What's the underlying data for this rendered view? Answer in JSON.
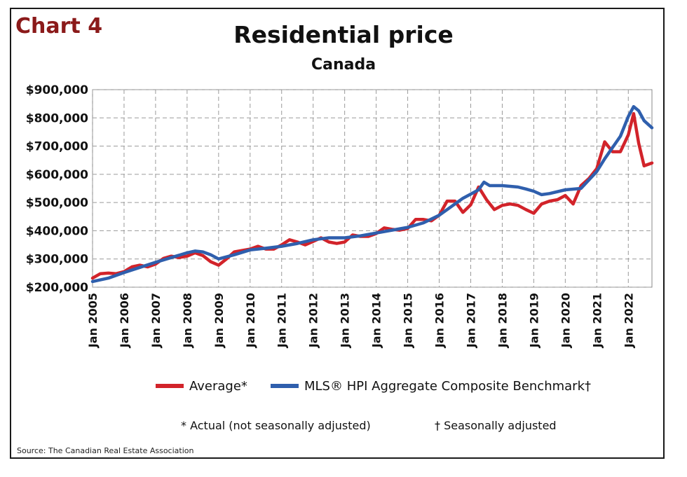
{
  "chart_label": "Chart 4",
  "source": "Source: The Canadian Real Estate Association",
  "colors": {
    "average": "#d2232a",
    "hpi": "#2f5fad",
    "label": "#8b1a1a"
  },
  "chart_data": {
    "type": "line",
    "title": "Residential price",
    "subtitle": "Canada",
    "xlabel": "",
    "ylabel": "",
    "xlim": [
      2005.0,
      2022.75
    ],
    "ylim": [
      200000,
      900000
    ],
    "y_ticks": [
      "$200,000",
      "$300,000",
      "$400,000",
      "$500,000",
      "$600,000",
      "$700,000",
      "$800,000",
      "$900,000"
    ],
    "y_tick_values": [
      200000,
      300000,
      400000,
      500000,
      600000,
      700000,
      800000,
      900000
    ],
    "x_ticks": [
      "Jan 2005",
      "Jan 2006",
      "Jan 2007",
      "Jan 2008",
      "Jan 2009",
      "Jan 2010",
      "Jan 2011",
      "Jan 2012",
      "Jan 2013",
      "Jan 2014",
      "Jan 2015",
      "Jan 2016",
      "Jan 2017",
      "Jan 2018",
      "Jan 2019",
      "Jan 2020",
      "Jan 2021",
      "Jan 2022"
    ],
    "x_tick_values": [
      2005,
      2006,
      2007,
      2008,
      2009,
      2010,
      2011,
      2012,
      2013,
      2014,
      2015,
      2016,
      2017,
      2018,
      2019,
      2020,
      2021,
      2022
    ],
    "grid": true,
    "legend_position": "bottom",
    "series": [
      {
        "name": "Average*",
        "points": [
          [
            2005.0,
            232000
          ],
          [
            2005.25,
            248000
          ],
          [
            2005.5,
            250000
          ],
          [
            2005.75,
            248000
          ],
          [
            2006.0,
            255000
          ],
          [
            2006.25,
            272000
          ],
          [
            2006.5,
            278000
          ],
          [
            2006.75,
            272000
          ],
          [
            2007.0,
            282000
          ],
          [
            2007.25,
            302000
          ],
          [
            2007.5,
            310000
          ],
          [
            2007.75,
            305000
          ],
          [
            2008.0,
            310000
          ],
          [
            2008.25,
            322000
          ],
          [
            2008.5,
            312000
          ],
          [
            2008.75,
            290000
          ],
          [
            2009.0,
            278000
          ],
          [
            2009.25,
            300000
          ],
          [
            2009.5,
            325000
          ],
          [
            2009.75,
            330000
          ],
          [
            2010.0,
            335000
          ],
          [
            2010.25,
            345000
          ],
          [
            2010.5,
            335000
          ],
          [
            2010.75,
            335000
          ],
          [
            2011.0,
            350000
          ],
          [
            2011.25,
            368000
          ],
          [
            2011.5,
            360000
          ],
          [
            2011.75,
            350000
          ],
          [
            2012.0,
            362000
          ],
          [
            2012.25,
            375000
          ],
          [
            2012.5,
            360000
          ],
          [
            2012.75,
            355000
          ],
          [
            2013.0,
            360000
          ],
          [
            2013.25,
            385000
          ],
          [
            2013.5,
            380000
          ],
          [
            2013.75,
            380000
          ],
          [
            2014.0,
            390000
          ],
          [
            2014.25,
            410000
          ],
          [
            2014.5,
            405000
          ],
          [
            2014.75,
            402000
          ],
          [
            2015.0,
            408000
          ],
          [
            2015.25,
            440000
          ],
          [
            2015.5,
            440000
          ],
          [
            2015.75,
            435000
          ],
          [
            2016.0,
            455000
          ],
          [
            2016.25,
            505000
          ],
          [
            2016.5,
            505000
          ],
          [
            2016.75,
            465000
          ],
          [
            2017.0,
            492000
          ],
          [
            2017.25,
            555000
          ],
          [
            2017.5,
            510000
          ],
          [
            2017.75,
            475000
          ],
          [
            2018.0,
            490000
          ],
          [
            2018.25,
            495000
          ],
          [
            2018.5,
            490000
          ],
          [
            2018.75,
            475000
          ],
          [
            2019.0,
            462000
          ],
          [
            2019.25,
            495000
          ],
          [
            2019.5,
            505000
          ],
          [
            2019.75,
            510000
          ],
          [
            2020.0,
            525000
          ],
          [
            2020.25,
            495000
          ],
          [
            2020.5,
            560000
          ],
          [
            2020.75,
            585000
          ],
          [
            2021.0,
            620000
          ],
          [
            2021.25,
            715000
          ],
          [
            2021.5,
            680000
          ],
          [
            2021.75,
            680000
          ],
          [
            2022.0,
            740000
          ],
          [
            2022.17,
            815000
          ],
          [
            2022.33,
            710000
          ],
          [
            2022.5,
            630000
          ],
          [
            2022.75,
            640000
          ]
        ]
      },
      {
        "name": "MLS® HPI Aggregate Composite Benchmark†",
        "points": [
          [
            2005.0,
            220000
          ],
          [
            2005.5,
            232000
          ],
          [
            2006.0,
            252000
          ],
          [
            2006.5,
            270000
          ],
          [
            2007.0,
            288000
          ],
          [
            2007.5,
            305000
          ],
          [
            2008.0,
            322000
          ],
          [
            2008.25,
            328000
          ],
          [
            2008.5,
            325000
          ],
          [
            2008.75,
            315000
          ],
          [
            2009.0,
            300000
          ],
          [
            2009.5,
            315000
          ],
          [
            2010.0,
            332000
          ],
          [
            2010.5,
            338000
          ],
          [
            2011.0,
            345000
          ],
          [
            2011.5,
            355000
          ],
          [
            2012.0,
            368000
          ],
          [
            2012.5,
            375000
          ],
          [
            2013.0,
            375000
          ],
          [
            2013.5,
            382000
          ],
          [
            2014.0,
            392000
          ],
          [
            2014.5,
            402000
          ],
          [
            2015.0,
            412000
          ],
          [
            2015.5,
            428000
          ],
          [
            2016.0,
            455000
          ],
          [
            2016.5,
            495000
          ],
          [
            2016.75,
            515000
          ],
          [
            2017.0,
            530000
          ],
          [
            2017.25,
            545000
          ],
          [
            2017.42,
            572000
          ],
          [
            2017.6,
            560000
          ],
          [
            2018.0,
            560000
          ],
          [
            2018.5,
            555000
          ],
          [
            2018.75,
            548000
          ],
          [
            2019.0,
            540000
          ],
          [
            2019.25,
            528000
          ],
          [
            2019.5,
            532000
          ],
          [
            2020.0,
            545000
          ],
          [
            2020.5,
            550000
          ],
          [
            2020.75,
            580000
          ],
          [
            2021.0,
            610000
          ],
          [
            2021.25,
            655000
          ],
          [
            2021.5,
            695000
          ],
          [
            2021.75,
            735000
          ],
          [
            2022.0,
            805000
          ],
          [
            2022.17,
            840000
          ],
          [
            2022.33,
            825000
          ],
          [
            2022.5,
            790000
          ],
          [
            2022.75,
            765000
          ]
        ]
      }
    ]
  },
  "notes": {
    "actual": "* Actual (not seasonally adjusted)",
    "seasonal": "† Seasonally adjusted"
  }
}
